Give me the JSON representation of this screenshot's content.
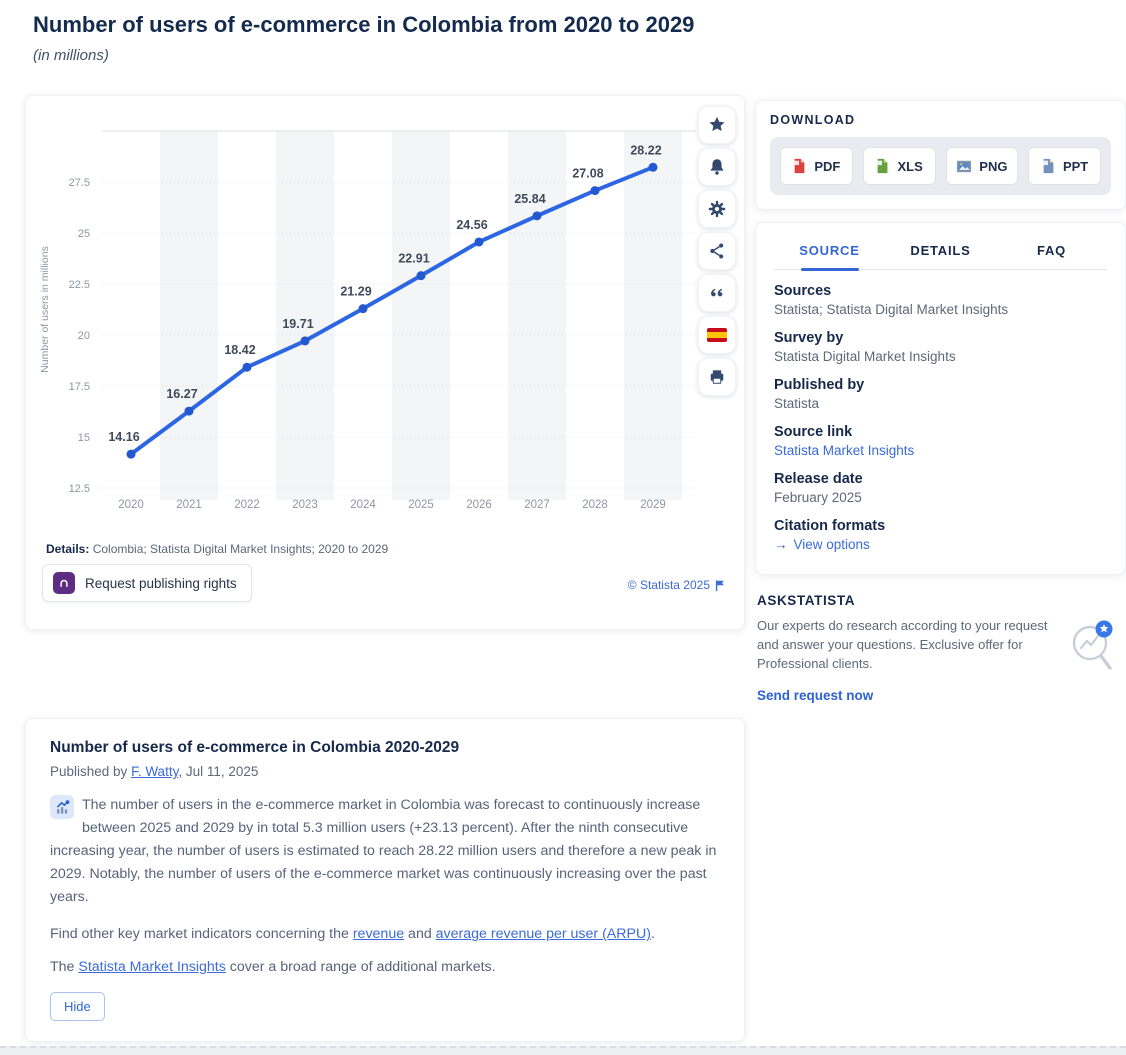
{
  "page": {
    "title": "Number of users of e-commerce in Colombia from 2020 to 2029",
    "subtitle": "(in millions)"
  },
  "chart_data": {
    "type": "line",
    "title": "Number of users of e-commerce in Colombia from 2020 to 2029",
    "subtitle": "(in millions)",
    "categories": [
      "2020",
      "2021",
      "2022",
      "2023",
      "2024",
      "2025",
      "2026",
      "2027",
      "2028",
      "2029"
    ],
    "values": [
      14.16,
      16.27,
      18.42,
      19.71,
      21.29,
      22.91,
      24.56,
      25.84,
      27.08,
      28.22
    ],
    "xlabel": "",
    "ylabel": "Number of users in millions",
    "ylim": [
      12.5,
      30
    ],
    "ytick_step": 2.5,
    "grid": "horizontal-dotted",
    "legend": false,
    "line_color": "#2d66e2",
    "marker_color": "#2458cf",
    "stripe_color": "#f4f5f7",
    "grid_color": "#dcdfe4",
    "tick_color": "#8e97a3",
    "value_label_color": "#3e4a5c"
  },
  "toolbar": {
    "icons": [
      "favorite-star",
      "notification-bell",
      "settings-gear",
      "share",
      "cite-quote",
      "language-spanish-flag",
      "print"
    ]
  },
  "chart_footer": {
    "details_label": "Details:",
    "details_text": " Colombia; Statista Digital Market Insights; 2020 to 2029",
    "publishing_button": "Request publishing rights",
    "copyright": "© Statista 2025"
  },
  "download": {
    "heading": "DOWNLOAD",
    "buttons": [
      {
        "label": "PDF",
        "color": "#d8433f"
      },
      {
        "label": "XLS",
        "color": "#66a23c"
      },
      {
        "label": "PNG",
        "color": "#7292bb"
      },
      {
        "label": "PPT",
        "color": "#e2892f"
      }
    ]
  },
  "info_panel": {
    "tabs": [
      {
        "label": "SOURCE",
        "active": true
      },
      {
        "label": "DETAILS",
        "active": false
      },
      {
        "label": "FAQ",
        "active": false
      }
    ],
    "rows": [
      {
        "label": "Sources",
        "value": "Statista; Statista Digital Market Insights"
      },
      {
        "label": "Survey by",
        "value": "Statista Digital Market Insights"
      },
      {
        "label": "Published by",
        "value": "Statista"
      },
      {
        "label": "Source link",
        "value": "Statista Market Insights"
      },
      {
        "label": "Release date",
        "value": "February 2025"
      },
      {
        "label": "Citation formats",
        "value": "View options"
      }
    ],
    "citation_arrow": "→"
  },
  "askstatista": {
    "heading": "ASKSTATISTA",
    "text": "Our experts do research according to your request and answer your questions. Exclusive offer for Professional clients.",
    "cta": "Send request now"
  },
  "description": {
    "title": "Number of users of e-commerce in Colombia 2020-2029",
    "published_prefix": "Published by ",
    "author": "F. Watty",
    "published_suffix": ", Jul 11, 2025",
    "paragraph": "The number of users in the e-commerce market in Colombia was forecast to continuously increase between 2025 and 2029 by in total 5.3 million users (+23.13 percent). After the ninth consecutive increasing year, the number of users is estimated to reach 28.22 million users and therefore a new peak in 2029. Notably, the number of users of the e-commerce market was continuously increasing over the past years.",
    "find_prefix": "Find other key market indicators concerning the ",
    "link_revenue": "revenue",
    "find_mid": " and ",
    "link_arpu": "average revenue per user (ARPU)",
    "find_suffix": ".",
    "insights_prefix": "The ",
    "link_insights": "Statista Market Insights",
    "insights_suffix": " cover a broad range of additional markets.",
    "hide_button": "Hide"
  },
  "colors": {
    "accent_blue": "#3466d6",
    "heading_navy": "#17294b",
    "body_gray": "#5d6879",
    "link_blue": "#3a6bd8",
    "publishing_icon_purple": "#5c2d83"
  }
}
